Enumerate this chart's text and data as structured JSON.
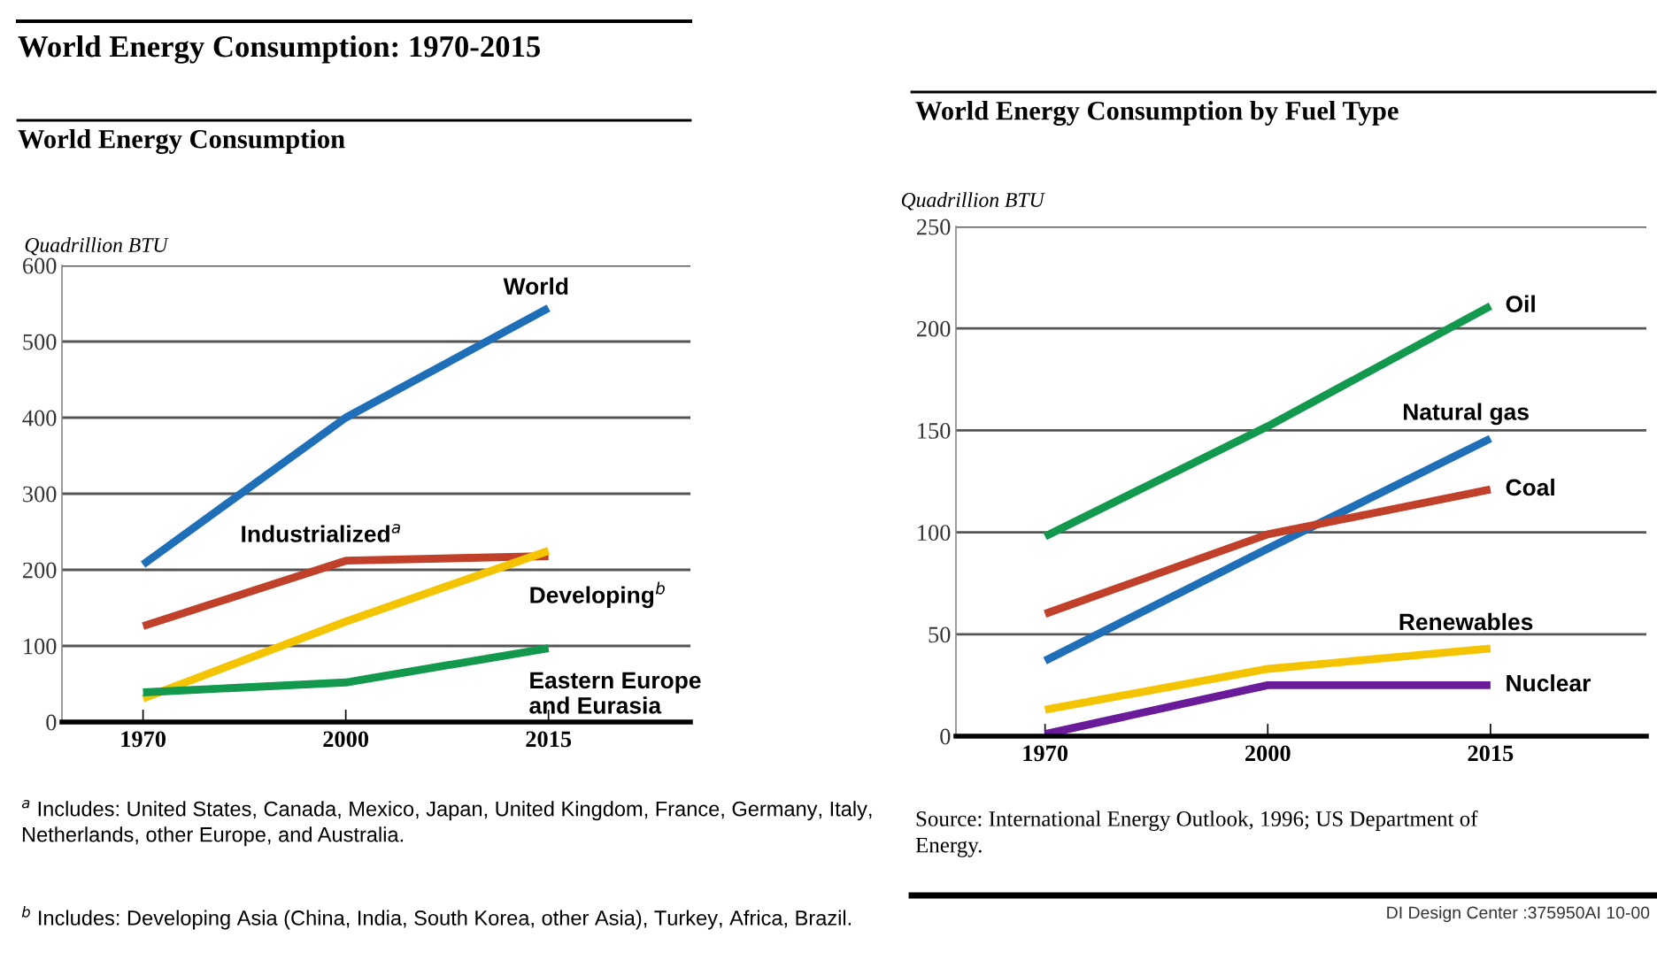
{
  "chart_data": [
    {
      "type": "line",
      "title": "World Energy Consumption: 1970-2015",
      "subtitle": "World Energy Consumption",
      "ylabel": "Quadrillion BTU",
      "categories": [
        "1970",
        "2000",
        "2015"
      ],
      "series": [
        {
          "name": "World",
          "color": "#1f6fb8",
          "values": [
            207,
            400,
            544
          ]
        },
        {
          "name": "Industrialized$^{a}$",
          "color": "#c0402a",
          "values": [
            126,
            212,
            218
          ]
        },
        {
          "name": "Developing$^{b}$",
          "color": "#f5c400",
          "values": [
            31,
            132,
            225
          ]
        },
        {
          "name": "Eastern Europe\nand Eurasia",
          "color": "#13994d",
          "values": [
            39,
            52,
            97
          ]
        }
      ],
      "ylim": [
        0,
        600
      ],
      "yticks": [
        0,
        100,
        200,
        300,
        400,
        500,
        600
      ],
      "grid": "y",
      "legend": false,
      "marker": "none",
      "line_style": "solid",
      "annotations": [
        "$^{a}$ Includes: United States, Canada, Mexico, Japan, United Kingdom, France, Germany, Italy, Netherlands, other Europe, and Australia.",
        "$^{b}$ Includes: Developing Asia (China, India, South Korea, other Asia), Turkey, Africa, Brazil."
      ]
    },
    {
      "type": "line",
      "title": "World Energy Consumption by Fuel Type",
      "ylabel": "Quadrillion BTU",
      "categories": [
        "1970",
        "2000",
        "2015"
      ],
      "series": [
        {
          "name": "Oil",
          "color": "#13994d",
          "values": [
            98,
            152,
            211
          ]
        },
        {
          "name": "Natural gas",
          "color": "#1f6fb8",
          "values": [
            37,
            92,
            146
          ]
        },
        {
          "name": "Coal",
          "color": "#c0402a",
          "values": [
            60,
            99,
            121
          ]
        },
        {
          "name": "Renewables",
          "color": "#f5c400",
          "values": [
            13,
            33,
            43
          ]
        },
        {
          "name": "Nuclear",
          "color": "#6a1b9a",
          "values": [
            1,
            25,
            25
          ]
        }
      ],
      "ylim": [
        0,
        250
      ],
      "yticks": [
        0,
        50,
        100,
        150,
        200,
        250
      ],
      "grid": "y",
      "legend": false,
      "marker": "none",
      "line_style": "solid",
      "annotations": [
        "Source: International Energy Outlook, 1996; US Department of Energy.",
        "DI Design Center :375950AI 10-00"
      ]
    }
  ]
}
